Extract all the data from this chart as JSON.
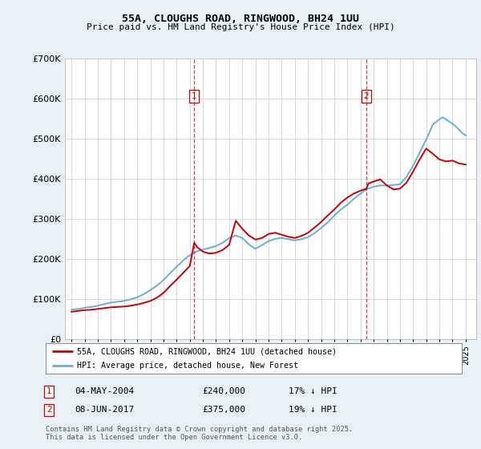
{
  "title": "55A, CLOUGHS ROAD, RINGWOOD, BH24 1UU",
  "subtitle": "Price paid vs. HM Land Registry's House Price Index (HPI)",
  "legend_line1": "55A, CLOUGHS ROAD, RINGWOOD, BH24 1UU (detached house)",
  "legend_line2": "HPI: Average price, detached house, New Forest",
  "annotation1": {
    "label": "1",
    "date": "04-MAY-2004",
    "price": "£240,000",
    "note": "17% ↓ HPI",
    "x_year": 2004.34
  },
  "annotation2": {
    "label": "2",
    "date": "08-JUN-2017",
    "price": "£375,000",
    "note": "19% ↓ HPI",
    "x_year": 2017.44
  },
  "footer": "Contains HM Land Registry data © Crown copyright and database right 2025.\nThis data is licensed under the Open Government Licence v3.0.",
  "hpi_color": "#6aaed6",
  "price_color": "#cc0000",
  "background_color": "#e8f0f8",
  "plot_bg_color": "#ffffff",
  "ylim": [
    0,
    700000
  ],
  "ytick_vals": [
    0,
    100000,
    200000,
    300000,
    400000,
    500000,
    600000,
    700000
  ],
  "ytick_labels": [
    "£0",
    "£100K",
    "£200K",
    "£300K",
    "£400K",
    "£500K",
    "£600K",
    "£700K"
  ],
  "xlim_start": 1994.5,
  "xlim_end": 2025.8,
  "hpi_data": [
    [
      1995.0,
      73000
    ],
    [
      1995.25,
      74000
    ],
    [
      1995.5,
      75000
    ],
    [
      1995.75,
      76000
    ],
    [
      1996.0,
      78000
    ],
    [
      1996.5,
      80000
    ],
    [
      1997.0,
      83000
    ],
    [
      1997.5,
      87000
    ],
    [
      1998.0,
      91000
    ],
    [
      1998.5,
      93000
    ],
    [
      1999.0,
      95000
    ],
    [
      1999.5,
      99000
    ],
    [
      2000.0,
      104000
    ],
    [
      2000.5,
      112000
    ],
    [
      2001.0,
      122000
    ],
    [
      2001.5,
      133000
    ],
    [
      2002.0,
      147000
    ],
    [
      2002.5,
      164000
    ],
    [
      2003.0,
      180000
    ],
    [
      2003.5,
      196000
    ],
    [
      2004.0,
      209000
    ],
    [
      2004.5,
      218000
    ],
    [
      2005.0,
      223000
    ],
    [
      2005.5,
      227000
    ],
    [
      2006.0,
      232000
    ],
    [
      2006.5,
      240000
    ],
    [
      2007.0,
      252000
    ],
    [
      2007.5,
      258000
    ],
    [
      2008.0,
      252000
    ],
    [
      2008.5,
      236000
    ],
    [
      2009.0,
      225000
    ],
    [
      2009.5,
      234000
    ],
    [
      2010.0,
      244000
    ],
    [
      2010.5,
      250000
    ],
    [
      2011.0,
      252000
    ],
    [
      2011.5,
      249000
    ],
    [
      2012.0,
      246000
    ],
    [
      2012.5,
      249000
    ],
    [
      2013.0,
      254000
    ],
    [
      2013.5,
      264000
    ],
    [
      2014.0,
      277000
    ],
    [
      2014.5,
      291000
    ],
    [
      2015.0,
      308000
    ],
    [
      2015.5,
      323000
    ],
    [
      2016.0,
      335000
    ],
    [
      2016.5,
      350000
    ],
    [
      2017.0,
      363000
    ],
    [
      2017.5,
      374000
    ],
    [
      2018.0,
      380000
    ],
    [
      2018.5,
      383000
    ],
    [
      2019.0,
      383000
    ],
    [
      2019.5,
      384000
    ],
    [
      2020.0,
      386000
    ],
    [
      2020.5,
      405000
    ],
    [
      2021.0,
      432000
    ],
    [
      2021.5,
      465000
    ],
    [
      2022.0,
      498000
    ],
    [
      2022.5,
      535000
    ],
    [
      2023.0,
      548000
    ],
    [
      2023.25,
      553000
    ],
    [
      2023.5,
      548000
    ],
    [
      2023.75,
      542000
    ],
    [
      2024.0,
      537000
    ],
    [
      2024.25,
      530000
    ],
    [
      2024.5,
      522000
    ],
    [
      2024.75,
      513000
    ],
    [
      2025.0,
      508000
    ]
  ],
  "price_data": [
    [
      1995.0,
      68000
    ],
    [
      1995.5,
      70000
    ],
    [
      1996.0,
      72000
    ],
    [
      1996.5,
      73000
    ],
    [
      1997.0,
      75000
    ],
    [
      1997.5,
      77000
    ],
    [
      1998.0,
      79000
    ],
    [
      1998.5,
      80000
    ],
    [
      1999.0,
      81000
    ],
    [
      1999.5,
      83000
    ],
    [
      2000.0,
      86000
    ],
    [
      2000.5,
      90000
    ],
    [
      2001.0,
      95000
    ],
    [
      2001.5,
      103000
    ],
    [
      2002.0,
      115000
    ],
    [
      2002.5,
      132000
    ],
    [
      2003.0,
      148000
    ],
    [
      2003.5,
      165000
    ],
    [
      2004.0,
      182000
    ],
    [
      2004.34,
      240000
    ],
    [
      2004.6,
      228000
    ],
    [
      2005.0,
      218000
    ],
    [
      2005.5,
      213000
    ],
    [
      2006.0,
      215000
    ],
    [
      2006.5,
      222000
    ],
    [
      2007.0,
      235000
    ],
    [
      2007.5,
      295000
    ],
    [
      2008.0,
      275000
    ],
    [
      2008.5,
      258000
    ],
    [
      2009.0,
      248000
    ],
    [
      2009.5,
      252000
    ],
    [
      2010.0,
      262000
    ],
    [
      2010.5,
      265000
    ],
    [
      2011.0,
      260000
    ],
    [
      2011.5,
      255000
    ],
    [
      2012.0,
      252000
    ],
    [
      2012.5,
      257000
    ],
    [
      2013.0,
      265000
    ],
    [
      2013.5,
      278000
    ],
    [
      2014.0,
      292000
    ],
    [
      2014.5,
      308000
    ],
    [
      2015.0,
      323000
    ],
    [
      2015.5,
      340000
    ],
    [
      2016.0,
      353000
    ],
    [
      2016.5,
      363000
    ],
    [
      2017.0,
      370000
    ],
    [
      2017.44,
      375000
    ],
    [
      2017.6,
      388000
    ],
    [
      2018.0,
      393000
    ],
    [
      2018.5,
      398000
    ],
    [
      2019.0,
      383000
    ],
    [
      2019.5,
      373000
    ],
    [
      2020.0,
      375000
    ],
    [
      2020.5,
      390000
    ],
    [
      2021.0,
      418000
    ],
    [
      2021.5,
      448000
    ],
    [
      2022.0,
      475000
    ],
    [
      2022.5,
      462000
    ],
    [
      2023.0,
      448000
    ],
    [
      2023.5,
      443000
    ],
    [
      2024.0,
      445000
    ],
    [
      2024.5,
      438000
    ],
    [
      2025.0,
      435000
    ]
  ]
}
